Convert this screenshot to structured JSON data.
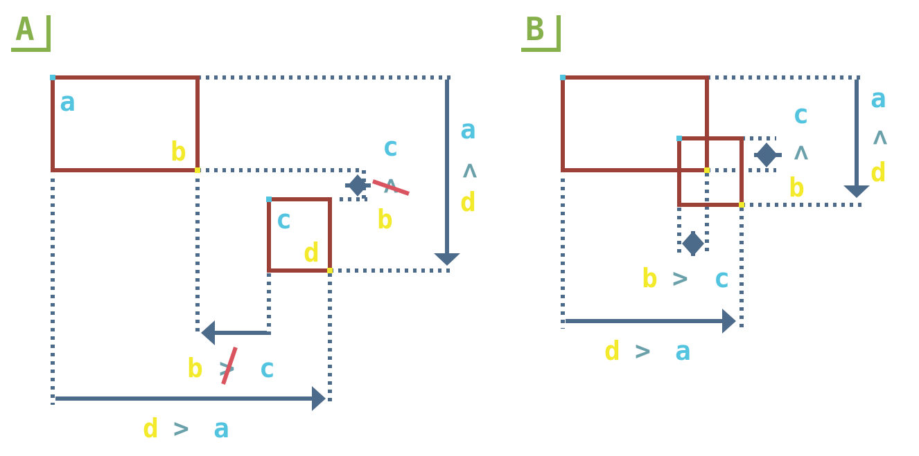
{
  "colors": {
    "panel_label": "#86b04b",
    "box": "#9c3f37",
    "guide": "#4c6a8a",
    "op": "#6aa0aa",
    "strike": "#d9545e",
    "cyan": "#52c4e0",
    "yellow": "#f4ea2c"
  },
  "panels": [
    {
      "label": "A",
      "top_left_a": "a",
      "bottom_right_b": "b",
      "top_left_c": "c",
      "bottom_right_d": "d",
      "x_condition_1": {
        "left": "b",
        "op": ">",
        "right": "c",
        "negated": true
      },
      "x_condition_2": {
        "left": "d",
        "op": ">",
        "right": "a",
        "negated": false
      },
      "y_condition_1": {
        "left": "c",
        "op": ">",
        "right": "b",
        "negated": true
      },
      "y_condition_2": {
        "left": "a",
        "op": ">",
        "right": "d",
        "negated": false
      }
    },
    {
      "label": "B",
      "x_condition_1": {
        "left": "b",
        "op": ">",
        "right": "c",
        "negated": false
      },
      "x_condition_2": {
        "left": "d",
        "op": ">",
        "right": "a",
        "negated": false
      },
      "y_condition_1": {
        "left": "c",
        "op": ">",
        "right": "b",
        "negated": false
      },
      "y_condition_2": {
        "left": "a",
        "op": ">",
        "right": "d",
        "negated": false
      }
    }
  ]
}
